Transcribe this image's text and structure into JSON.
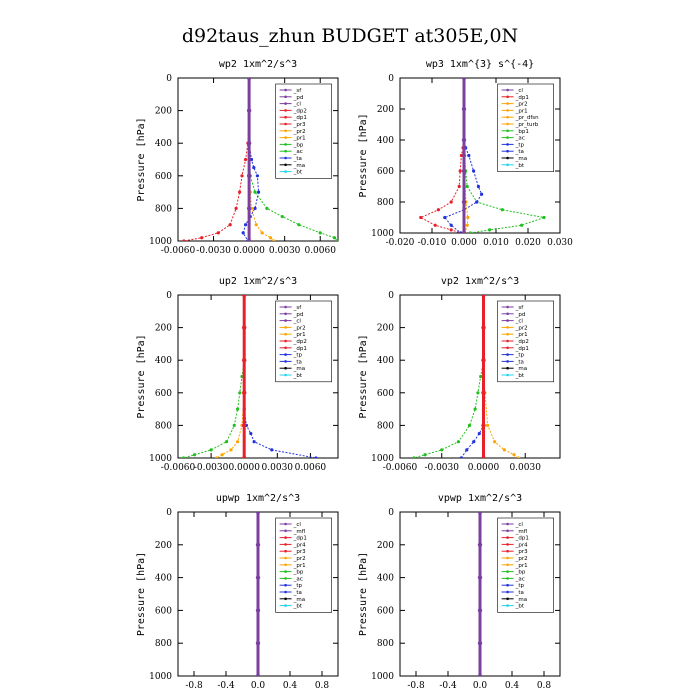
{
  "figure": {
    "title": "d92taus_zhun  BUDGET at305E,0N"
  },
  "chart_data": [
    {
      "type": "line",
      "title": "wp2  1xm^2/s^3",
      "ylabel": "Pressure [hPa]",
      "xlim": [
        -0.006,
        0.0075
      ],
      "ylim": [
        1000,
        0
      ],
      "xticks": [
        "-0.0060",
        "-0.0030",
        "0.0000",
        "0.0030",
        "0.0060"
      ],
      "xtick_values": [
        -0.006,
        -0.003,
        0,
        0.003,
        0.006
      ],
      "yticks": [
        "0",
        "200",
        "400",
        "600",
        "800",
        "1000"
      ],
      "ytick_values": [
        0,
        200,
        400,
        600,
        800,
        1000
      ],
      "legend": [
        "_sf",
        "_pd",
        "_cl",
        "_dp2",
        "_dp1",
        "_pr3",
        "_pr2",
        "_pr1",
        "_bp",
        "_ac",
        "_ta",
        "_ma",
        "_bt"
      ],
      "series": [
        {
          "name": "_dp1",
          "color": "#e8202a",
          "y": [
            0,
            200,
            400,
            500,
            600,
            700,
            800,
            900,
            950,
            980,
            1000
          ],
          "x": [
            0,
            0,
            -0.0001,
            -0.0003,
            -0.0006,
            -0.0008,
            -0.0011,
            -0.0016,
            -0.0026,
            -0.004,
            -0.0055
          ]
        },
        {
          "name": "_pr2",
          "color": "#ffa500",
          "y": [
            0,
            200,
            400,
            600,
            700,
            800,
            900,
            950,
            980,
            1000
          ],
          "x": [
            0,
            0,
            0,
            0,
            0.0001,
            0.0002,
            0.0006,
            0.0011,
            0.0018,
            0.0021
          ]
        },
        {
          "name": "_bp",
          "color": "#22c01e",
          "y": [
            0,
            200,
            400,
            600,
            700,
            800,
            850,
            900,
            950,
            980,
            1000
          ],
          "x": [
            0,
            0,
            0,
            0.0001,
            0.0005,
            0.0015,
            0.0028,
            0.0042,
            0.006,
            0.0072,
            0.0075
          ]
        },
        {
          "name": "_ac",
          "color": "#2233dd",
          "y": [
            0,
            200,
            400,
            500,
            550,
            600,
            700,
            800,
            850,
            900,
            950,
            1000
          ],
          "x": [
            0,
            0,
            0,
            0.0002,
            0.0004,
            0.0007,
            0.0008,
            0.0005,
            0.0001,
            -0.0003,
            -0.0005,
            -0.0001
          ]
        },
        {
          "name": "_pd",
          "color": "#7b3fa0",
          "y": [
            0,
            200,
            400,
            600,
            800,
            1000
          ],
          "x": [
            0,
            0,
            0,
            0,
            0,
            0
          ]
        }
      ]
    },
    {
      "type": "line",
      "title": "wp3  1xm^{3} s^{-4}",
      "ylabel": "Pressure [hPa]",
      "xlim": [
        -0.02,
        0.03
      ],
      "ylim": [
        1000,
        0
      ],
      "xticks": [
        "-0.020",
        "-0.010",
        "0.000",
        "0.010",
        "0.020",
        "0.030"
      ],
      "xtick_values": [
        -0.02,
        -0.01,
        0,
        0.01,
        0.02,
        0.03
      ],
      "yticks": [
        "0",
        "200",
        "400",
        "600",
        "800",
        "1000"
      ],
      "ytick_values": [
        0,
        200,
        400,
        600,
        800,
        1000
      ],
      "legend": [
        "_cl",
        "_dp1",
        "_pr2",
        "_pr1",
        "_pr_dfsn",
        "_pr_turb",
        "_bp1",
        "_ac",
        "_tp",
        "_ta",
        "_ma",
        "_bt"
      ],
      "series": [
        {
          "name": "_pr1",
          "color": "#e8202a",
          "y": [
            0,
            400,
            450,
            500,
            600,
            700,
            800,
            850,
            900,
            950,
            980,
            1000
          ],
          "x": [
            0,
            0,
            -0.0003,
            -0.0008,
            -0.0012,
            -0.0015,
            -0.004,
            -0.008,
            -0.0135,
            -0.009,
            -0.004,
            -0.001
          ]
        },
        {
          "name": "_bp1",
          "color": "#22c01e",
          "y": [
            0,
            400,
            500,
            600,
            700,
            800,
            850,
            900,
            950,
            980,
            1000
          ],
          "x": [
            0,
            0,
            0.0002,
            0.0005,
            0.001,
            0.004,
            0.012,
            0.025,
            0.018,
            0.008,
            0.002
          ]
        },
        {
          "name": "_ac",
          "color": "#2233dd",
          "y": [
            0,
            400,
            450,
            500,
            600,
            700,
            750,
            800,
            850,
            900,
            950,
            1000
          ],
          "x": [
            0,
            0,
            0.0005,
            0.0015,
            0.003,
            0.0045,
            0.0055,
            0.004,
            0.0,
            -0.006,
            -0.004,
            -0.001
          ]
        },
        {
          "name": "_pr2",
          "color": "#ffa500",
          "y": [
            0,
            400,
            600,
            800,
            900,
            950,
            1000
          ],
          "x": [
            0,
            0,
            0.0002,
            0.0006,
            0.0012,
            0.001,
            0.0003
          ]
        },
        {
          "name": "_dp1",
          "color": "#7b3fa0",
          "y": [
            0,
            200,
            400,
            600,
            800,
            1000
          ],
          "x": [
            0,
            0,
            0,
            0,
            0,
            0
          ]
        }
      ]
    },
    {
      "type": "line",
      "title": "up2  1xm^2/s^3",
      "ylabel": "Pressure [hPa]",
      "xlim": [
        -0.006,
        0.0085
      ],
      "ylim": [
        1000,
        0
      ],
      "xticks": [
        "-0.0060",
        "-0.0030",
        "0.0000",
        "0.0030",
        "0.0060"
      ],
      "xtick_values": [
        -0.006,
        -0.003,
        0,
        0.003,
        0.006
      ],
      "yticks": [
        "0",
        "200",
        "400",
        "600",
        "800",
        "1000"
      ],
      "ytick_values": [
        0,
        200,
        400,
        600,
        800,
        1000
      ],
      "legend": [
        "_sf",
        "_pd",
        "_cl",
        "_pr2",
        "_pr1",
        "_dp2",
        "_dp1",
        "_tp",
        "_ta",
        "_ma",
        "_bt"
      ],
      "series": [
        {
          "name": "_dp1",
          "color": "#22c01e",
          "y": [
            0,
            200,
            400,
            500,
            600,
            700,
            800,
            900,
            950,
            980,
            1000
          ],
          "x": [
            0,
            0,
            0,
            -0.0002,
            -0.0004,
            -0.0006,
            -0.0009,
            -0.0016,
            -0.003,
            -0.0045,
            -0.0055
          ]
        },
        {
          "name": "_pr1",
          "color": "#ffa500",
          "y": [
            0,
            200,
            400,
            600,
            800,
            900,
            950,
            980,
            1000
          ],
          "x": [
            0,
            0,
            0,
            0,
            -0.0002,
            -0.0006,
            -0.0012,
            -0.002,
            -0.0025
          ]
        },
        {
          "name": "_tp",
          "color": "#2233dd",
          "y": [
            0,
            400,
            700,
            800,
            850,
            900,
            950,
            1000
          ],
          "x": [
            0,
            0,
            0,
            0.0002,
            0.0006,
            0.0009,
            0.0025,
            0.0065
          ]
        },
        {
          "name": "_cl",
          "color": "#e8202a",
          "y": [
            0,
            200,
            400,
            600,
            800,
            1000
          ],
          "x": [
            0,
            0,
            0,
            0,
            0,
            0
          ]
        }
      ]
    },
    {
      "type": "line",
      "title": "vp2  1xm^2/s^3",
      "ylabel": "Pressure [hPa]",
      "xlim": [
        -0.006,
        0.0055
      ],
      "ylim": [
        1000,
        0
      ],
      "xticks": [
        "-0.0060",
        "-0.0030",
        "0.0000",
        "0.0030"
      ],
      "xtick_values": [
        -0.006,
        -0.003,
        0,
        0.003
      ],
      "yticks": [
        "0",
        "200",
        "400",
        "600",
        "800",
        "1000"
      ],
      "ytick_values": [
        0,
        200,
        400,
        600,
        800,
        1000
      ],
      "legend": [
        "_sf",
        "_pd",
        "_cl",
        "_pr2",
        "_pr1",
        "_dp2",
        "_dp1",
        "_tp",
        "_ta",
        "_ma",
        "_bt"
      ],
      "series": [
        {
          "name": "_dp1",
          "color": "#22c01e",
          "y": [
            0,
            200,
            400,
            500,
            600,
            700,
            800,
            900,
            950,
            980,
            1000
          ],
          "x": [
            0,
            0,
            0,
            -0.0002,
            -0.0004,
            -0.0006,
            -0.001,
            -0.0018,
            -0.003,
            -0.0042,
            -0.005
          ]
        },
        {
          "name": "_pr1",
          "color": "#ffa500",
          "y": [
            0,
            200,
            400,
            600,
            800,
            900,
            950,
            980,
            1000
          ],
          "x": [
            0,
            0,
            0,
            0.0001,
            0.0003,
            0.0008,
            0.0015,
            0.0022,
            0.0025
          ]
        },
        {
          "name": "_tp",
          "color": "#2233dd",
          "y": [
            0,
            400,
            700,
            800,
            850,
            900,
            950,
            1000
          ],
          "x": [
            0,
            0,
            0,
            0,
            -0.0003,
            -0.0007,
            -0.0012,
            -0.0016
          ]
        },
        {
          "name": "_cl",
          "color": "#e8202a",
          "y": [
            0,
            200,
            400,
            600,
            800,
            1000
          ],
          "x": [
            0,
            0,
            0,
            0,
            0,
            0
          ]
        }
      ]
    },
    {
      "type": "line",
      "title": "upwp  1xm^2/s^3",
      "ylabel": "Pressure [hPa]",
      "xlim": [
        -1.0,
        1.0
      ],
      "ylim": [
        1000,
        0
      ],
      "xticks": [
        "-0.8",
        "-0.4",
        "0.0",
        "0.4",
        "0.8"
      ],
      "xtick_values": [
        -0.8,
        -0.4,
        0,
        0.4,
        0.8
      ],
      "yticks": [
        "0",
        "200",
        "400",
        "600",
        "800",
        "1000"
      ],
      "ytick_values": [
        0,
        200,
        400,
        600,
        800,
        1000
      ],
      "legend": [
        "_cl",
        "_mfl",
        "_dp1",
        "_pr4",
        "_pr3",
        "_pr2",
        "_pr1",
        "_bp",
        "_ac",
        "_tp",
        "_ta",
        "_ma",
        "_bt"
      ],
      "series": [
        {
          "name": "_mfl",
          "color": "#7b3fa0",
          "y": [
            0,
            200,
            400,
            600,
            800,
            1000
          ],
          "x": [
            0,
            0,
            0,
            0,
            0,
            0
          ]
        }
      ]
    },
    {
      "type": "line",
      "title": "vpwp  1xm^2/s^3",
      "ylabel": "Pressure [hPa]",
      "xlim": [
        -1.0,
        1.0
      ],
      "ylim": [
        1000,
        0
      ],
      "xticks": [
        "-0.8",
        "-0.4",
        "0.0",
        "0.4",
        "0.8"
      ],
      "xtick_values": [
        -0.8,
        -0.4,
        0,
        0.4,
        0.8
      ],
      "yticks": [
        "0",
        "200",
        "400",
        "600",
        "800",
        "1000"
      ],
      "ytick_values": [
        0,
        200,
        400,
        600,
        800,
        1000
      ],
      "legend": [
        "_cl",
        "_mfl",
        "_dp1",
        "_pr4",
        "_pr3",
        "_pr2",
        "_pr1",
        "_bp",
        "_ac",
        "_tp",
        "_ta",
        "_ma",
        "_bt"
      ],
      "series": [
        {
          "name": "_mfl",
          "color": "#7b3fa0",
          "y": [
            0,
            200,
            400,
            600,
            800,
            1000
          ],
          "x": [
            0,
            0,
            0,
            0,
            0,
            0
          ]
        }
      ]
    }
  ],
  "legend_colors": {
    "_sf": "#7b3fa0",
    "_pd": "#7b3fa0",
    "_cl": "#7b3fa0",
    "_mfl": "#7b3fa0",
    "_dp2": "#e8202a",
    "_dp1": "#e8202a",
    "_pr4": "#e8202a",
    "_pr3": "#e8202a",
    "_pr2": "#ffa500",
    "_pr1": "#ffa500",
    "_pr_dfsn": "#ffa500",
    "_pr_turb": "#ffa500",
    "_bp": "#22c01e",
    "_bp1": "#22c01e",
    "_ac": "#22c01e",
    "_tp": "#2233dd",
    "_ta": "#2233dd",
    "_ma": "#000000",
    "_bt": "#22d3ee"
  }
}
